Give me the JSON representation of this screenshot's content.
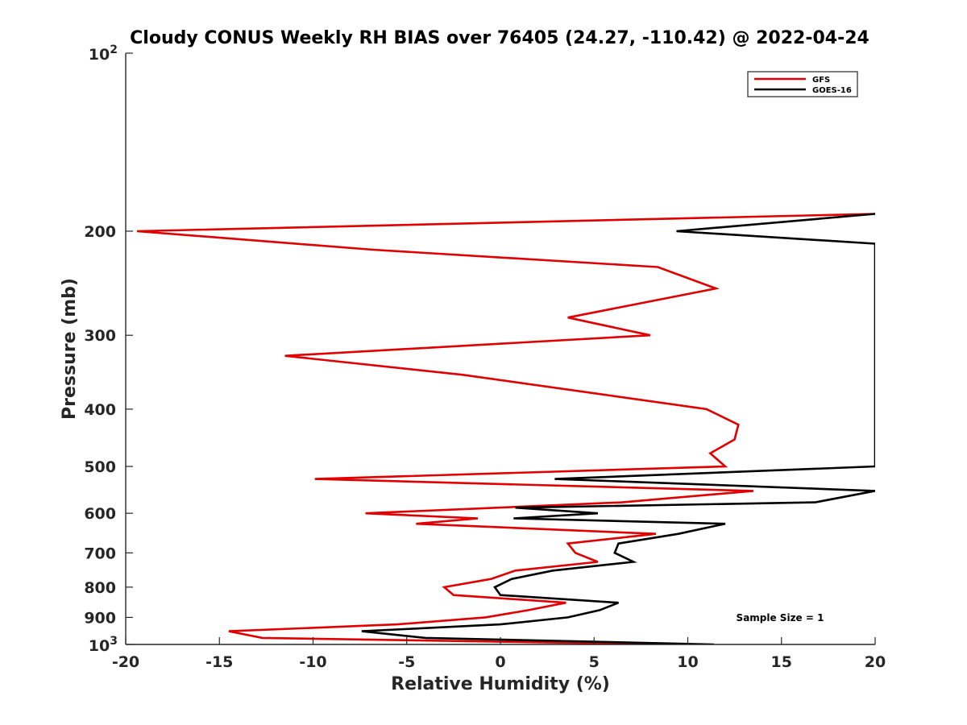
{
  "chart_data": {
    "type": "line",
    "title": "Cloudy CONUS Weekly RH BIAS over 76405 (24.27, -110.42) @ 2022-04-24",
    "xlabel": "Relative Humidity (%)",
    "ylabel": "Pressure (mb)",
    "xlim": [
      -20,
      20
    ],
    "ylim": [
      100,
      1000
    ],
    "yscale": "log",
    "yreversed": true,
    "grid": false,
    "legend_position": "top-right",
    "x_ticks": [
      -20,
      -15,
      -10,
      -5,
      0,
      5,
      10,
      15,
      20
    ],
    "x_tick_labels": [
      "-20",
      "-15",
      "-10",
      "-5",
      "0",
      "5",
      "10",
      "15",
      "20"
    ],
    "y_ticks": [
      200,
      300,
      400,
      500,
      600,
      700,
      800,
      900
    ],
    "y_tick_labels": [
      "200",
      "300",
      "400",
      "500",
      "600",
      "700",
      "800",
      "900"
    ],
    "y_top_label": {
      "base": "10",
      "exp": "2"
    },
    "y_bottom_label": {
      "base": "10",
      "exp": "3"
    },
    "annotation": "Sample Size = 1",
    "series": [
      {
        "name": "GFS",
        "color": "#e00000",
        "points": [
          [
            9.3,
            1000
          ],
          [
            -12.7,
            975
          ],
          [
            -14.5,
            950
          ],
          [
            -5.5,
            925
          ],
          [
            -0.8,
            900
          ],
          [
            1.5,
            875
          ],
          [
            3.5,
            850
          ],
          [
            -2.5,
            825
          ],
          [
            -3.0,
            800
          ],
          [
            -0.5,
            775
          ],
          [
            0.8,
            750
          ],
          [
            5.2,
            725
          ],
          [
            4.0,
            700
          ],
          [
            3.6,
            675
          ],
          [
            8.3,
            650
          ],
          [
            -4.5,
            625
          ],
          [
            -1.2,
            612
          ],
          [
            -7.2,
            600
          ],
          [
            6.5,
            575
          ],
          [
            13.5,
            550
          ],
          [
            -9.9,
            525
          ],
          [
            12.0,
            500
          ],
          [
            11.2,
            475
          ],
          [
            12.5,
            450
          ],
          [
            12.7,
            425
          ],
          [
            11.0,
            400
          ],
          [
            -2.0,
            350
          ],
          [
            -11.5,
            325
          ],
          [
            8.0,
            300
          ],
          [
            3.6,
            280
          ],
          [
            11.5,
            250
          ],
          [
            8.4,
            230
          ],
          [
            -6.8,
            215
          ],
          [
            -19.4,
            200
          ],
          [
            20.0,
            187
          ]
        ]
      },
      {
        "name": "GOES-16",
        "color": "#000000",
        "points": [
          [
            11.4,
            1000
          ],
          [
            -4.0,
            975
          ],
          [
            -7.4,
            950
          ],
          [
            0.0,
            925
          ],
          [
            3.6,
            900
          ],
          [
            5.3,
            875
          ],
          [
            6.3,
            850
          ],
          [
            0.0,
            825
          ],
          [
            -0.3,
            800
          ],
          [
            0.6,
            775
          ],
          [
            2.8,
            750
          ],
          [
            7.1,
            725
          ],
          [
            6.1,
            700
          ],
          [
            6.3,
            675
          ],
          [
            9.5,
            650
          ],
          [
            12.0,
            625
          ],
          [
            0.7,
            612
          ],
          [
            5.2,
            600
          ],
          [
            0.8,
            587
          ],
          [
            16.8,
            575
          ],
          [
            20.0,
            550
          ],
          [
            2.9,
            525
          ],
          [
            20.0,
            500
          ],
          [
            20.0,
            210
          ],
          [
            9.4,
            200
          ],
          [
            20.0,
            187
          ]
        ]
      }
    ]
  }
}
